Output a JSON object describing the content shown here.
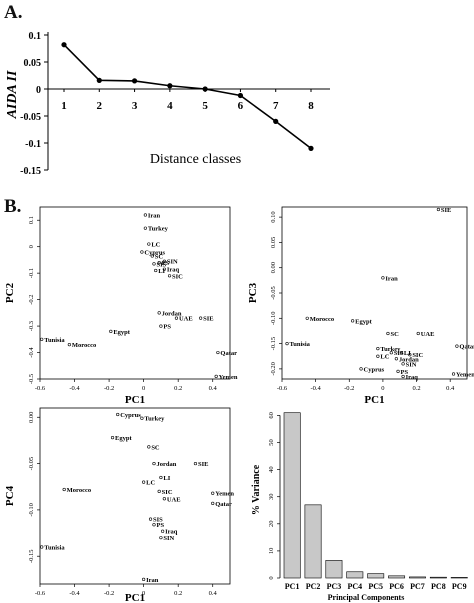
{
  "panel_labels": {
    "a": "A.",
    "b": "B."
  },
  "chart_data": [
    {
      "id": "aida",
      "type": "line",
      "title": "",
      "xlabel": "Distance classes",
      "ylabel": "AIDA II",
      "x": [
        1,
        2,
        3,
        4,
        5,
        6,
        7,
        8
      ],
      "values": [
        0.082,
        0.016,
        0.015,
        0.006,
        0.0,
        -0.012,
        -0.06,
        -0.11
      ],
      "ylim": [
        -0.15,
        0.1
      ],
      "yticks": [
        "0.1",
        "0.05",
        "0",
        "-0.05",
        "-0.1",
        "-0.15"
      ],
      "yticks_values": [
        0.1,
        0.05,
        0,
        -0.05,
        -0.1,
        -0.15
      ],
      "xtick_labels": [
        "1",
        "2",
        "3",
        "4",
        "5",
        "6",
        "7",
        "8"
      ],
      "grid": false
    },
    {
      "id": "pc1pc2",
      "type": "scatter",
      "xlabel": "PC1",
      "ylabel": "PC2",
      "xlim": [
        -0.6,
        0.5
      ],
      "ylim": [
        -0.5,
        0.15
      ],
      "xticks": [
        "-0.6",
        "-0.4",
        "-0.2",
        "0",
        "0.2",
        "0.4"
      ],
      "xticks_values": [
        -0.6,
        -0.4,
        -0.2,
        0,
        0.2,
        0.4
      ],
      "yticks": [
        "0.1",
        "0",
        "-0.1",
        "-0.2",
        "-0.3",
        "-0.4",
        "-0.5"
      ],
      "yticks_values": [
        0.1,
        0,
        -0.1,
        -0.2,
        -0.3,
        -0.4,
        -0.5
      ],
      "points": [
        {
          "label": "Iran",
          "x": 0.01,
          "y": 0.12
        },
        {
          "label": "Turkey",
          "x": 0.01,
          "y": 0.07
        },
        {
          "label": "LC",
          "x": 0.03,
          "y": 0.01
        },
        {
          "label": "Cyprus",
          "x": -0.01,
          "y": -0.02
        },
        {
          "label": "SC",
          "x": 0.05,
          "y": -0.035
        },
        {
          "label": "SIN",
          "x": 0.12,
          "y": -0.055
        },
        {
          "label": "SIS",
          "x": 0.06,
          "y": -0.065
        },
        {
          "label": "PS",
          "x": 0.09,
          "y": -0.06
        },
        {
          "label": "LI",
          "x": 0.07,
          "y": -0.09
        },
        {
          "label": "Iraq",
          "x": 0.12,
          "y": -0.085
        },
        {
          "label": "SIC",
          "x": 0.15,
          "y": -0.11
        },
        {
          "label": "Jordan",
          "x": 0.09,
          "y": -0.25
        },
        {
          "label": "UAE",
          "x": 0.19,
          "y": -0.27
        },
        {
          "label": "SIE",
          "x": 0.33,
          "y": -0.27
        },
        {
          "label": "PS",
          "x": 0.1,
          "y": -0.3
        },
        {
          "label": "Egypt",
          "x": -0.19,
          "y": -0.32
        },
        {
          "label": "Tunisia",
          "x": -0.59,
          "y": -0.35
        },
        {
          "label": "Morocco",
          "x": -0.43,
          "y": -0.37
        },
        {
          "label": "Qatar",
          "x": 0.43,
          "y": -0.4
        },
        {
          "label": "Yemen",
          "x": 0.42,
          "y": -0.49
        }
      ]
    },
    {
      "id": "pc1pc3",
      "type": "scatter",
      "xlabel": "PC1",
      "ylabel": "PC3",
      "xlim": [
        -0.6,
        0.5
      ],
      "ylim": [
        -0.22,
        0.12
      ],
      "xticks": [
        "-0.6",
        "-0.4",
        "-0.2",
        "0",
        "0.2",
        "0.4"
      ],
      "xticks_values": [
        -0.6,
        -0.4,
        -0.2,
        0,
        0.2,
        0.4
      ],
      "yticks": [
        "0.10",
        "0.05",
        "0.00",
        "-0.05",
        "-0.10",
        "-0.15",
        "-0.20"
      ],
      "yticks_values": [
        0.1,
        0.05,
        0.0,
        -0.05,
        -0.1,
        -0.15,
        -0.2
      ],
      "points": [
        {
          "label": "SIE",
          "x": 0.33,
          "y": 0.115
        },
        {
          "label": "Iran",
          "x": 0.0,
          "y": -0.02
        },
        {
          "label": "Morocco",
          "x": -0.45,
          "y": -0.1
        },
        {
          "label": "Egypt",
          "x": -0.18,
          "y": -0.105
        },
        {
          "label": "SC",
          "x": 0.03,
          "y": -0.13
        },
        {
          "label": "UAE",
          "x": 0.21,
          "y": -0.13
        },
        {
          "label": "Tunisia",
          "x": -0.57,
          "y": -0.15
        },
        {
          "label": "Qatar",
          "x": 0.44,
          "y": -0.155
        },
        {
          "label": "Turkey",
          "x": -0.03,
          "y": -0.16
        },
        {
          "label": "SIS",
          "x": 0.05,
          "y": -0.168
        },
        {
          "label": "LI",
          "x": 0.11,
          "y": -0.168
        },
        {
          "label": "SIC",
          "x": 0.16,
          "y": -0.172
        },
        {
          "label": "LC",
          "x": -0.03,
          "y": -0.175
        },
        {
          "label": "Jordan",
          "x": 0.08,
          "y": -0.18
        },
        {
          "label": "SIN",
          "x": 0.12,
          "y": -0.19
        },
        {
          "label": "Cyprus",
          "x": -0.13,
          "y": -0.2
        },
        {
          "label": "PS",
          "x": 0.09,
          "y": -0.205
        },
        {
          "label": "Yemen",
          "x": 0.42,
          "y": -0.21
        },
        {
          "label": "Iraq",
          "x": 0.12,
          "y": -0.215
        }
      ]
    },
    {
      "id": "pc1pc4",
      "type": "scatter",
      "xlabel": "PC1",
      "ylabel": "PC4",
      "xlim": [
        -0.6,
        0.5
      ],
      "ylim": [
        -0.18,
        0.01
      ],
      "xticks": [
        "-0.6",
        "-0.4",
        "-0.2",
        "0",
        "0.2",
        "0.4"
      ],
      "xticks_values": [
        -0.6,
        -0.4,
        -0.2,
        0,
        0.2,
        0.4
      ],
      "yticks": [
        "0.00",
        "-0.05",
        "-0.10",
        "-0.15"
      ],
      "yticks_values": [
        0.0,
        -0.05,
        -0.1,
        -0.15
      ],
      "points": [
        {
          "label": "Cyprus",
          "x": -0.15,
          "y": 0.003
        },
        {
          "label": "Turkey",
          "x": -0.01,
          "y": -0.001
        },
        {
          "label": "Egypt",
          "x": -0.18,
          "y": -0.022
        },
        {
          "label": "SC",
          "x": 0.03,
          "y": -0.032
        },
        {
          "label": "Jordan",
          "x": 0.06,
          "y": -0.05
        },
        {
          "label": "SIE",
          "x": 0.3,
          "y": -0.05
        },
        {
          "label": "LI",
          "x": 0.1,
          "y": -0.065
        },
        {
          "label": "LC",
          "x": 0.0,
          "y": -0.07
        },
        {
          "label": "Morocco",
          "x": -0.46,
          "y": -0.078
        },
        {
          "label": "SIC",
          "x": 0.09,
          "y": -0.08
        },
        {
          "label": "Yemen",
          "x": 0.4,
          "y": -0.082
        },
        {
          "label": "UAE",
          "x": 0.12,
          "y": -0.088
        },
        {
          "label": "Qatar",
          "x": 0.4,
          "y": -0.093
        },
        {
          "label": "SIS",
          "x": 0.04,
          "y": -0.11
        },
        {
          "label": "PS",
          "x": 0.06,
          "y": -0.116
        },
        {
          "label": "Iraq",
          "x": 0.11,
          "y": -0.123
        },
        {
          "label": "SIN",
          "x": 0.1,
          "y": -0.13
        },
        {
          "label": "Tunisia",
          "x": -0.59,
          "y": -0.14
        },
        {
          "label": "Iran",
          "x": 0.0,
          "y": -0.175
        }
      ]
    },
    {
      "id": "variance",
      "type": "bar",
      "xlabel": "Principal Components",
      "ylabel": "% Variance",
      "categories": [
        "PC1",
        "PC2",
        "PC3",
        "PC4",
        "PC5",
        "PC6",
        "PC7",
        "PC8",
        "PC9"
      ],
      "values": [
        61,
        27,
        6.5,
        2.3,
        1.6,
        0.8,
        0.4,
        0.3,
        0.2
      ],
      "ylim": [
        0,
        62
      ],
      "yticks": [
        "0",
        "10",
        "20",
        "30",
        "40",
        "50",
        "60"
      ],
      "yticks_values": [
        0,
        10,
        20,
        30,
        40,
        50,
        60
      ],
      "bar_color": "#c8c8c8"
    }
  ]
}
